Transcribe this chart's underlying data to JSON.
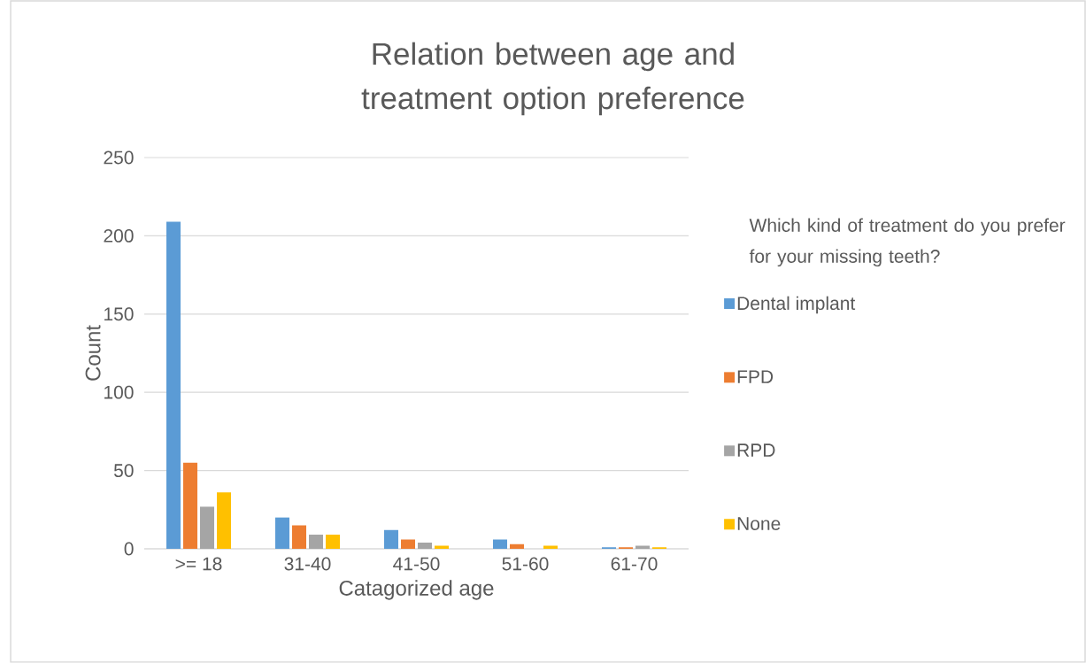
{
  "chart_data": {
    "type": "bar",
    "title": "Relation between age and treatment option preference",
    "xlabel": "Catagorized age",
    "ylabel": "Count",
    "legend_title": "Which kind of treatment do you prefer for your missing teeth?",
    "categories": [
      ">= 18",
      "31-40",
      "41-50",
      "51-60",
      "61-70"
    ],
    "series": [
      {
        "name": "Dental implant",
        "color": "#5b9bd5",
        "values": [
          209,
          20,
          12,
          6,
          1
        ]
      },
      {
        "name": "FPD",
        "color": "#ed7d31",
        "values": [
          55,
          15,
          6,
          3,
          1
        ]
      },
      {
        "name": "RPD",
        "color": "#a5a5a5",
        "values": [
          27,
          9,
          4,
          0,
          2
        ]
      },
      {
        "name": "None",
        "color": "#ffc000",
        "values": [
          36,
          9,
          2,
          2,
          1
        ]
      }
    ],
    "ylim": [
      0,
      250
    ],
    "yticks": [
      0,
      50,
      100,
      150,
      200,
      250
    ],
    "grid": "y",
    "legend": "right"
  }
}
